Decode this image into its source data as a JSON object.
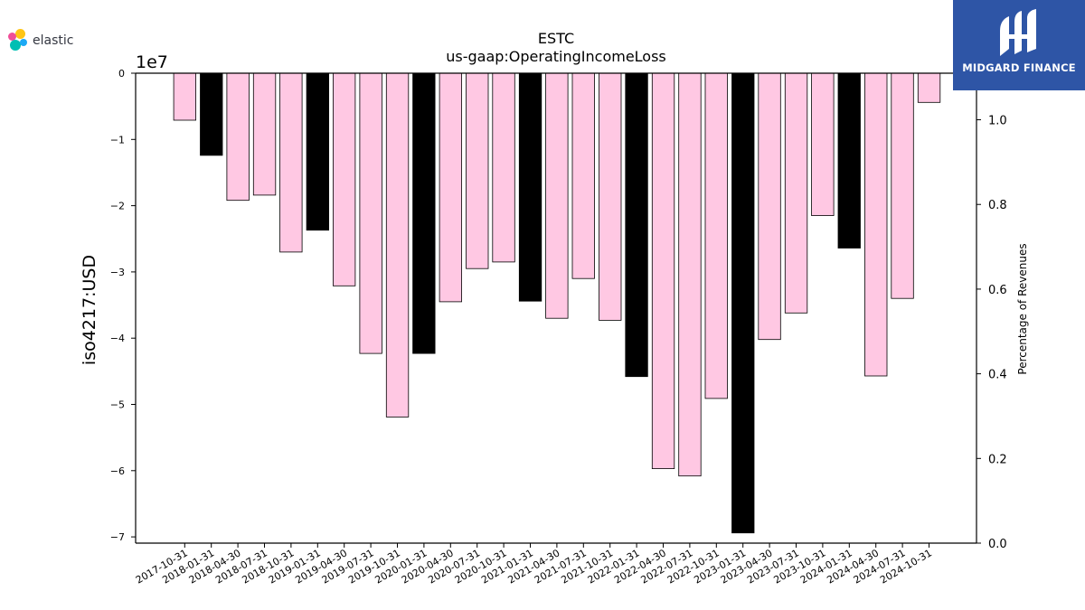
{
  "branding": {
    "elastic_label": "elastic",
    "midgard_label": "MIDGARD FINANCE"
  },
  "chart_data": {
    "type": "bar",
    "title": "ESTC",
    "subtitle": "us-gaap:OperatingIncomeLoss",
    "ylabel": "iso4217:USD",
    "y2label": "Percentage of Revenues",
    "offset_label": "1e7",
    "ylim": [
      -71000000,
      0
    ],
    "y2lim": [
      0.0,
      1.11
    ],
    "yticks": [
      0,
      -1,
      -2,
      -3,
      -4,
      -5,
      -6,
      -7
    ],
    "y2ticks": [
      "0.0",
      "0.2",
      "0.4",
      "0.6",
      "0.8",
      "1.0"
    ],
    "grid": false,
    "colors": {
      "quarter": "#ffc8e3",
      "fiscal_year_end": "#000000"
    },
    "categories": [
      "2017-10-31",
      "2018-01-31",
      "2018-04-30",
      "2018-07-31",
      "2018-10-31",
      "2019-01-31",
      "2019-04-30",
      "2019-07-31",
      "2019-10-31",
      "2020-01-31",
      "2020-04-30",
      "2020-07-31",
      "2020-10-31",
      "2021-01-31",
      "2021-04-30",
      "2021-07-31",
      "2021-10-31",
      "2022-01-31",
      "2022-04-30",
      "2022-07-31",
      "2022-10-31",
      "2023-01-31",
      "2023-04-30",
      "2023-07-31",
      "2023-10-31",
      "2024-01-31",
      "2024-04-30",
      "2024-07-31",
      "2024-10-31"
    ],
    "values": [
      -7100000,
      -12400000,
      -19200000,
      -18400000,
      -27000000,
      -23700000,
      -32100000,
      -42300000,
      -51900000,
      -42300000,
      -34500000,
      -29500000,
      -28500000,
      -34400000,
      -37000000,
      -31000000,
      -37300000,
      -45800000,
      -59700000,
      -60800000,
      -49100000,
      -69400000,
      -40200000,
      -36200000,
      -21500000,
      -26400000,
      -45700000,
      -34000000,
      -4400000
    ],
    "highlight": [
      false,
      true,
      false,
      false,
      false,
      true,
      false,
      false,
      false,
      true,
      false,
      false,
      false,
      true,
      false,
      false,
      false,
      true,
      false,
      false,
      false,
      true,
      false,
      false,
      false,
      true,
      false,
      false,
      false
    ]
  }
}
